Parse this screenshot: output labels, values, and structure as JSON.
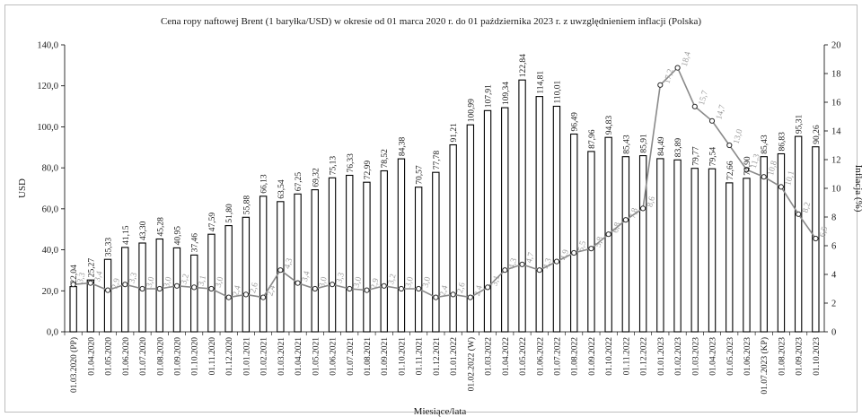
{
  "chart_data": {
    "type": "bar",
    "title": "Cena ropy naftowej Brent (1 baryłka/USD) w okresie od 01 marca 2020 r. do 01 października 2023 r. z uwzględnieniem  inflacji (Polska)",
    "xlabel": "Miesiące/lata",
    "ylabel": "USD",
    "y2label": "Inflacja (%)",
    "ylim": [
      0,
      140
    ],
    "y2lim": [
      0,
      20
    ],
    "yticks": [
      "0,0",
      "20,0",
      "40,0",
      "60,0",
      "80,0",
      "100,0",
      "120,0",
      "140,0"
    ],
    "y2ticks": [
      "0",
      "2",
      "4",
      "6",
      "8",
      "10",
      "12",
      "14",
      "16",
      "18",
      "20"
    ],
    "grid": false,
    "categories": [
      "01.03.2020 (PP)",
      "01.04.2020",
      "01.05.2020",
      "01.06.2020",
      "01.07.2020",
      "01.08.2020",
      "01.09.2020",
      "01.10.2020",
      "01.11.2020",
      "01.12.2020",
      "01.01.2021",
      "01.02.2021",
      "01.03.2021",
      "01.04.2021",
      "01.05.2021",
      "01.06.2021",
      "01.07.2021",
      "01.08.2021",
      "01.09.2021",
      "01.10.2021",
      "01.11.2021",
      "01.12.2021",
      "01.01.2022",
      "01.02.2022 (W)",
      "01.03.2022",
      "01.04.2022",
      "01.05.2022",
      "01.06.2022",
      "01.07.2022",
      "01.08.2022",
      "01.09.2022",
      "01.10.2022",
      "01.11.2022",
      "01.12.2022",
      "01.01.2023",
      "01.02.2023",
      "01.03.2023",
      "01.04.2023",
      "01.05.2023",
      "01.06.2023",
      "01.07.2023 (KP)",
      "01.08.2023",
      "01.09.2023",
      "01.10.2023"
    ],
    "series": [
      {
        "type": "bar",
        "axis": "left",
        "values": [
          22.04,
          25.27,
          35.33,
          41.15,
          43.3,
          45.28,
          40.95,
          37.46,
          47.59,
          51.8,
          55.88,
          66.13,
          63.54,
          67.25,
          69.32,
          75.13,
          76.33,
          72.99,
          78.52,
          84.38,
          70.57,
          77.78,
          91.21,
          100.99,
          107.91,
          109.34,
          122.84,
          114.81,
          110.01,
          96.49,
          87.96,
          94.83,
          85.43,
          85.91,
          84.49,
          83.89,
          79.77,
          79.54,
          72.66,
          74.9,
          85.43,
          86.83,
          95.31,
          90.26
        ],
        "labels": [
          "22,04",
          "25,27",
          "35,33",
          "41,15",
          "43,30",
          "45,28",
          "40,95",
          "37,46",
          "47,59",
          "51,80",
          "55,88",
          "66,13",
          "63,54",
          "67,25",
          "69,32",
          "75,13",
          "76,33",
          "72,99",
          "78,52",
          "84,38",
          "70,57",
          "77,78",
          "91,21",
          "100,99",
          "107,91",
          "109,34",
          "122,84",
          "114,81",
          "110,01",
          "96,49",
          "87,96",
          "94,83",
          "85,43",
          "85,91",
          "84,49",
          "83,89",
          "79,77",
          "79,54",
          "72,66",
          "74,90",
          "85,43",
          "86,83",
          "95,31",
          "90,26"
        ]
      },
      {
        "type": "line",
        "axis": "right",
        "values": [
          3.3,
          3.4,
          2.9,
          3.3,
          3.0,
          3.0,
          3.2,
          3.1,
          3.0,
          2.4,
          2.6,
          2.4,
          4.3,
          3.4,
          3.0,
          3.3,
          3.0,
          2.9,
          3.2,
          3.0,
          3.0,
          2.4,
          2.6,
          2.4,
          3.1,
          4.3,
          4.7,
          4.3,
          4.9,
          5.5,
          5.8,
          6.8,
          7.8,
          8.6,
          17.2,
          18.4,
          15.7,
          14.7,
          13.0,
          11.3,
          10.8,
          10.1,
          8.2,
          6.5
        ],
        "labels": [
          "3,3",
          "3,4",
          "2,9",
          "3,3",
          "3,0",
          "3,0",
          "3,2",
          "3,1",
          "3,0",
          "2,4",
          "2,6",
          "2,4",
          "4,3",
          "3,4",
          "3,0",
          "3,3",
          "3,0",
          "2,9",
          "3,2",
          "3,0",
          "3,0",
          "2,4",
          "2,6",
          "2,4",
          "3,1",
          "4,3",
          "4,7",
          "4,3",
          "4,9",
          "5,5",
          "5,8",
          "6,8",
          "7,8",
          "8,6",
          "17,2",
          "18,4",
          "15,7",
          "14,7",
          "13,0",
          "11,3",
          "10,8",
          "10,1",
          "8,2",
          "6,5"
        ]
      }
    ]
  }
}
